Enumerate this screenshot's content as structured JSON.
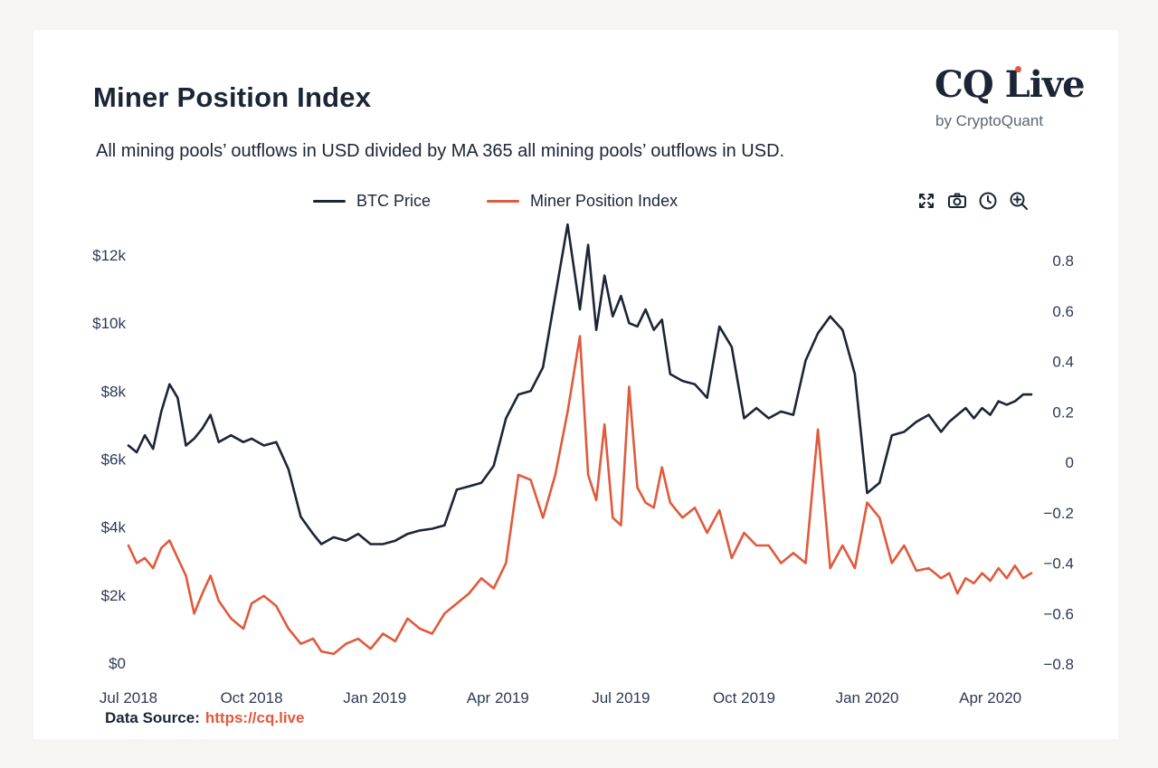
{
  "header": {
    "title": "Miner Position Index",
    "subtitle": "All mining pools’ outflows in USD divided by MA 365 all mining pools’ outflows in USD.",
    "logo": "CQ Live",
    "logo_sub": "by CryptoQuant"
  },
  "toolbar": {
    "icons": [
      "fullscreen-icon",
      "camera-icon",
      "clock-icon",
      "zoom-in-icon"
    ]
  },
  "footer": {
    "source_label": "Data Source:",
    "source_link": "https://cq.live"
  },
  "colors": {
    "btc": "#1b2536",
    "mpi": "#e05a3c"
  },
  "chart_data": {
    "type": "line",
    "title": "Miner Position Index",
    "legend": [
      "BTC Price",
      "Miner Position Index"
    ],
    "legend_position": "top-center",
    "x_labels": [
      "Jul 2018",
      "Oct 2018",
      "Jan 2019",
      "Apr 2019",
      "Jul 2019",
      "Oct 2019",
      "Jan 2020",
      "Apr 2020"
    ],
    "x_range_months": [
      0,
      22
    ],
    "y_left": {
      "label": "BTC Price",
      "range": [
        0,
        12000
      ],
      "ticks": [
        0,
        2000,
        4000,
        6000,
        8000,
        10000,
        12000
      ],
      "tick_labels": [
        "$0",
        "$2k",
        "$4k",
        "$6k",
        "$8k",
        "$10k",
        "$12k"
      ]
    },
    "y_right": {
      "label": "Miner Position Index",
      "range": [
        -0.8,
        0.8
      ],
      "ticks": [
        -0.8,
        -0.6,
        -0.4,
        -0.2,
        0,
        0.2,
        0.4,
        0.6,
        0.8
      ],
      "tick_labels": [
        "−0.8",
        "−0.6",
        "−0.4",
        "−0.2",
        "0",
        "0.2",
        "0.4",
        "0.6",
        "0.8"
      ]
    },
    "series": [
      {
        "name": "BTC Price",
        "axis": "left",
        "x": [
          0,
          0.2,
          0.4,
          0.6,
          0.8,
          1.0,
          1.2,
          1.4,
          1.6,
          1.8,
          2.0,
          2.2,
          2.5,
          2.8,
          3.0,
          3.3,
          3.6,
          3.9,
          4.2,
          4.5,
          4.7,
          5.0,
          5.3,
          5.6,
          5.9,
          6.2,
          6.5,
          6.8,
          7.1,
          7.4,
          7.7,
          8.0,
          8.3,
          8.6,
          8.9,
          9.2,
          9.5,
          9.8,
          10.1,
          10.4,
          10.7,
          11.0,
          11.2,
          11.4,
          11.6,
          11.8,
          12.0,
          12.2,
          12.4,
          12.6,
          12.8,
          13.0,
          13.2,
          13.5,
          13.8,
          14.1,
          14.4,
          14.7,
          15.0,
          15.3,
          15.6,
          15.9,
          16.2,
          16.5,
          16.8,
          17.1,
          17.4,
          17.7,
          18.0,
          18.3,
          18.6,
          18.9,
          19.2,
          19.5,
          19.8,
          20.0,
          20.2,
          20.4,
          20.6,
          20.8,
          21.0,
          21.2,
          21.4,
          21.6,
          21.8,
          22.0
        ],
        "values": [
          6400,
          6200,
          6700,
          6300,
          7400,
          8200,
          7800,
          6400,
          6600,
          6900,
          7300,
          6500,
          6700,
          6500,
          6600,
          6400,
          6500,
          5700,
          4300,
          3800,
          3500,
          3700,
          3600,
          3800,
          3500,
          3500,
          3600,
          3800,
          3900,
          3950,
          4050,
          5100,
          5200,
          5300,
          5800,
          7200,
          7900,
          8000,
          8700,
          10800,
          12900,
          10400,
          12300,
          9800,
          11400,
          10200,
          10800,
          10000,
          9900,
          10400,
          9800,
          10100,
          8500,
          8300,
          8200,
          7800,
          9900,
          9300,
          7200,
          7500,
          7200,
          7400,
          7300,
          8900,
          9700,
          10200,
          9800,
          8500,
          5000,
          5300,
          6700,
          6800,
          7100,
          7300,
          6800,
          7100,
          7300,
          7500,
          7200,
          7500,
          7300,
          7700,
          7600,
          7700,
          7900,
          7900
        ]
      },
      {
        "name": "Miner Position Index",
        "axis": "right",
        "x": [
          0,
          0.2,
          0.4,
          0.6,
          0.8,
          1.0,
          1.2,
          1.4,
          1.6,
          1.8,
          2.0,
          2.2,
          2.5,
          2.8,
          3.0,
          3.3,
          3.6,
          3.9,
          4.2,
          4.5,
          4.7,
          5.0,
          5.3,
          5.6,
          5.9,
          6.2,
          6.5,
          6.8,
          7.1,
          7.4,
          7.7,
          8.0,
          8.3,
          8.6,
          8.9,
          9.2,
          9.5,
          9.8,
          10.1,
          10.4,
          10.7,
          11.0,
          11.2,
          11.4,
          11.6,
          11.8,
          12.0,
          12.2,
          12.4,
          12.6,
          12.8,
          13.0,
          13.2,
          13.5,
          13.8,
          14.1,
          14.4,
          14.7,
          15.0,
          15.3,
          15.6,
          15.9,
          16.2,
          16.5,
          16.8,
          17.1,
          17.4,
          17.7,
          18.0,
          18.3,
          18.6,
          18.9,
          19.2,
          19.5,
          19.8,
          20.0,
          20.2,
          20.4,
          20.6,
          20.8,
          21.0,
          21.2,
          21.4,
          21.6,
          21.8,
          22.0
        ],
        "values": [
          -0.33,
          -0.4,
          -0.38,
          -0.42,
          -0.34,
          -0.31,
          -0.38,
          -0.45,
          -0.6,
          -0.52,
          -0.45,
          -0.55,
          -0.62,
          -0.66,
          -0.56,
          -0.53,
          -0.57,
          -0.66,
          -0.72,
          -0.7,
          -0.75,
          -0.76,
          -0.72,
          -0.7,
          -0.74,
          -0.68,
          -0.71,
          -0.62,
          -0.66,
          -0.68,
          -0.6,
          -0.56,
          -0.52,
          -0.46,
          -0.5,
          -0.4,
          -0.05,
          -0.07,
          -0.22,
          -0.05,
          0.2,
          0.5,
          -0.05,
          -0.15,
          0.15,
          -0.22,
          -0.25,
          0.3,
          -0.1,
          -0.16,
          -0.18,
          -0.02,
          -0.16,
          -0.22,
          -0.18,
          -0.28,
          -0.19,
          -0.38,
          -0.28,
          -0.33,
          -0.33,
          -0.4,
          -0.36,
          -0.4,
          0.13,
          -0.42,
          -0.33,
          -0.42,
          -0.16,
          -0.22,
          -0.4,
          -0.33,
          -0.43,
          -0.42,
          -0.46,
          -0.44,
          -0.52,
          -0.46,
          -0.48,
          -0.44,
          -0.47,
          -0.42,
          -0.46,
          -0.41,
          -0.46,
          -0.44
        ]
      }
    ]
  }
}
